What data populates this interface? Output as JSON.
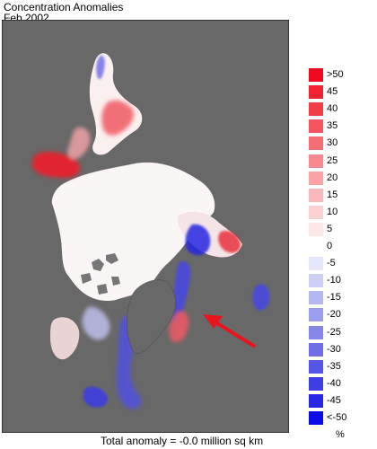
{
  "header": {
    "title": "Concentration Anomalies",
    "date": "Feb 2002"
  },
  "legend": {
    "items": [
      {
        "label": ">50",
        "color": "#ee0a1e"
      },
      {
        "label": "45",
        "color": "#f22434"
      },
      {
        "label": "40",
        "color": "#f23c48"
      },
      {
        "label": "35",
        "color": "#f45660"
      },
      {
        "label": "30",
        "color": "#f46e76"
      },
      {
        "label": "25",
        "color": "#f6888e"
      },
      {
        "label": "20",
        "color": "#f8a2a6"
      },
      {
        "label": "15",
        "color": "#f8b8bc"
      },
      {
        "label": "10",
        "color": "#fad0d2"
      },
      {
        "label": "5",
        "color": "#fce8ea"
      },
      {
        "label": "0",
        "color": "#ffffff"
      },
      {
        "label": "-5",
        "color": "#e6e6fa"
      },
      {
        "label": "-10",
        "color": "#cecef6"
      },
      {
        "label": "-15",
        "color": "#b6b6f2"
      },
      {
        "label": "-20",
        "color": "#9e9eee"
      },
      {
        "label": "-25",
        "color": "#8686ea"
      },
      {
        "label": "-30",
        "color": "#6e6ee8"
      },
      {
        "label": "-35",
        "color": "#5656e6"
      },
      {
        "label": "-40",
        "color": "#3e3ee4"
      },
      {
        "label": "-45",
        "color": "#2626e4"
      },
      {
        "label": "<-50",
        "color": "#0c0ce8"
      }
    ],
    "unit": "%"
  },
  "footer": {
    "summary": "Total anomaly = -0.0 million sq km"
  },
  "colors": {
    "land": "#686868",
    "ice_neutral": "#fbf6f6",
    "arrow": "#e8141e"
  }
}
